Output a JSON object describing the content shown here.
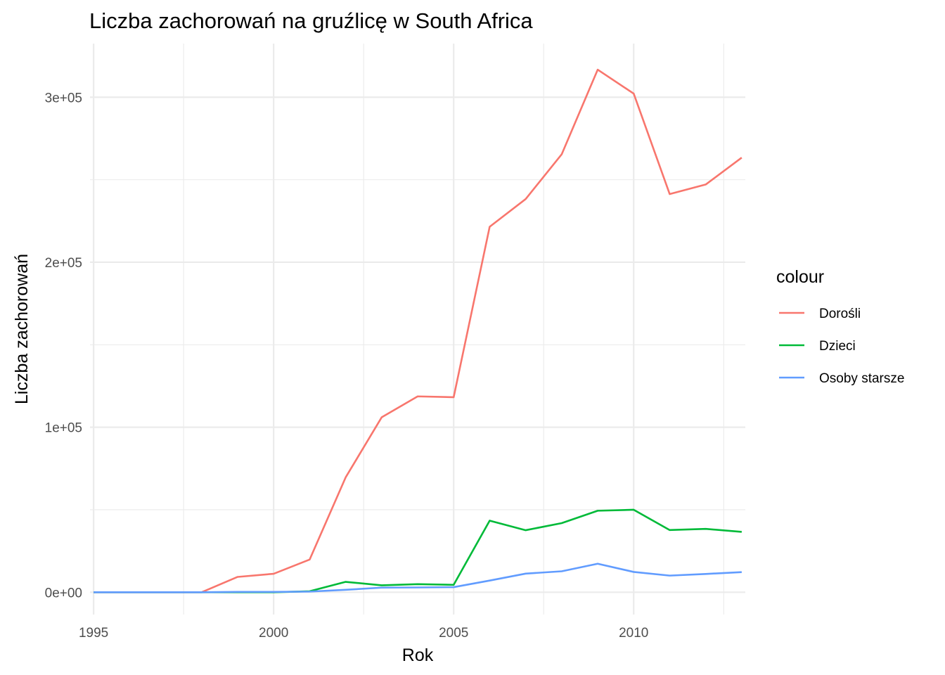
{
  "chart_data": {
    "type": "line",
    "title": "Liczba zachorowań na gruźlicę w South Africa",
    "xlabel": "Rok",
    "ylabel": "Liczba zachorowań",
    "x": [
      1995,
      1996,
      1997,
      1998,
      1999,
      2000,
      2001,
      2002,
      2003,
      2004,
      2005,
      2006,
      2007,
      2008,
      2009,
      2010,
      2011,
      2012,
      2013
    ],
    "series": [
      {
        "name": "Dorośli",
        "color": "#F8766D",
        "values": [
          0,
          0,
          0,
          0,
          9300,
          11200,
          19800,
          69600,
          106000,
          118700,
          118200,
          221500,
          238300,
          265400,
          316700,
          302200,
          241300,
          247100,
          263400
        ]
      },
      {
        "name": "Dzieci",
        "color": "#00BA38",
        "values": [
          0,
          0,
          0,
          0,
          0,
          0,
          600,
          6300,
          4200,
          4900,
          4500,
          43400,
          37600,
          41900,
          49400,
          50000,
          37700,
          38400,
          36600
        ]
      },
      {
        "name": "Osoby starsze",
        "color": "#619CFF",
        "values": [
          0,
          0,
          0,
          0,
          200,
          200,
          400,
          1500,
          2800,
          2900,
          3100,
          7100,
          11300,
          12700,
          17300,
          12300,
          10100,
          11100,
          12200
        ]
      }
    ],
    "xlim": [
      1994.9,
      2013.1
    ],
    "ylim": [
      -13500,
      332500
    ],
    "x_ticks": [
      1995,
      2000,
      2005,
      2010
    ],
    "x_tick_labels": [
      "1995",
      "2000",
      "2005",
      "2010"
    ],
    "x_minor_ticks": [
      1997.5,
      2002.5,
      2007.5,
      2012.5
    ],
    "y_ticks": [
      0,
      100000,
      200000,
      300000
    ],
    "y_tick_labels": [
      "0e+00",
      "1e+05",
      "2e+05",
      "3e+05"
    ],
    "y_minor_ticks": [
      50000,
      150000,
      250000
    ],
    "grid": true,
    "legend": {
      "title": "colour",
      "placement": "right",
      "entries": [
        "Dorośli",
        "Dzieci",
        "Osoby starsze"
      ]
    }
  }
}
